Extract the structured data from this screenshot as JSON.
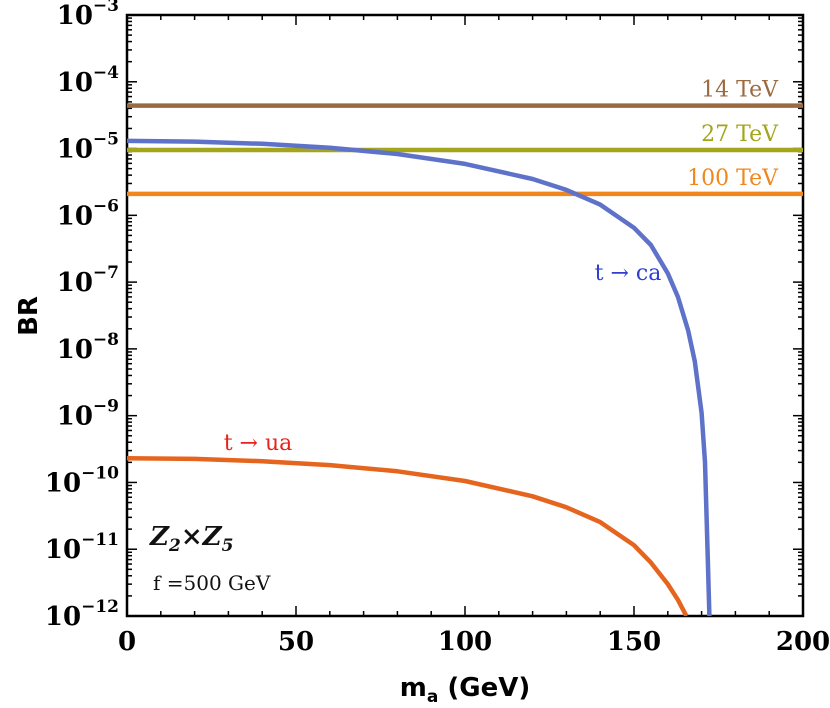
{
  "chart_data": {
    "type": "line",
    "title": "",
    "xlabel": {
      "main": "m",
      "sub": "a",
      "unit": " (GeV)"
    },
    "ylabel": "BR",
    "xlim": [
      0,
      200
    ],
    "ylim_log10": [
      -12,
      -3
    ],
    "yscale": "log",
    "grid": false,
    "x_ticks": [
      "0",
      "50",
      "100",
      "150",
      "200"
    ],
    "x_tick_values": [
      0,
      50,
      100,
      150,
      200
    ],
    "y_ticks": [
      {
        "base": "10",
        "exp": "−3",
        "value": -3
      },
      {
        "base": "10",
        "exp": "−4",
        "value": -4
      },
      {
        "base": "10",
        "exp": "−5",
        "value": -5
      },
      {
        "base": "10",
        "exp": "−6",
        "value": -6
      },
      {
        "base": "10",
        "exp": "−7",
        "value": -7
      },
      {
        "base": "10",
        "exp": "−8",
        "value": -8
      },
      {
        "base": "10",
        "exp": "−9",
        "value": -9
      },
      {
        "base": "10",
        "exp": "−10",
        "value": -10
      },
      {
        "base": "10",
        "exp": "−11",
        "value": -11
      },
      {
        "base": "10",
        "exp": "−12",
        "value": -12
      }
    ],
    "horizontal_lines": [
      {
        "name": "14 TeV",
        "label": "14 TeV",
        "y": 4.4e-05,
        "color": "#9b6a3e"
      },
      {
        "name": "27 TeV",
        "label": "27 TeV",
        "y": 9.5e-06,
        "color": "#a3a51a"
      },
      {
        "name": "100 TeV",
        "label": "100 TeV",
        "y": 2.1e-06,
        "color": "#f0861c"
      }
    ],
    "series": [
      {
        "name": "t → ca",
        "label": "t → ca",
        "color": "#5f72c9",
        "label_color": "#2e3fcf",
        "x": [
          0,
          20,
          40,
          60,
          80,
          100,
          120,
          130,
          140,
          150,
          155,
          160,
          163,
          166,
          168,
          170,
          171,
          171.8,
          172.3
        ],
        "y": [
          1.3e-05,
          1.27e-05,
          1.18e-05,
          1.03e-05,
          8.3e-06,
          5.9e-06,
          3.5e-06,
          2.4e-06,
          1.45e-06,
          6.5e-07,
          3.6e-07,
          1.35e-07,
          6e-08,
          1.9e-08,
          6.5e-09,
          1.1e-09,
          2e-10,
          8e-12,
          1e-12
        ]
      },
      {
        "name": "t → ua",
        "label": "t → ua",
        "color": "#e5651e",
        "label_color": "#e8221a",
        "x": [
          0,
          20,
          40,
          60,
          80,
          100,
          120,
          130,
          140,
          150,
          155,
          160,
          163,
          165.5
        ],
        "y": [
          2.3e-10,
          2.25e-10,
          2.08e-10,
          1.82e-10,
          1.47e-10,
          1.05e-10,
          6.2e-11,
          4.25e-11,
          2.55e-11,
          1.15e-11,
          6.3e-12,
          3e-12,
          1.75e-12,
          1e-12
        ]
      }
    ],
    "annotations": {
      "symmetry": {
        "z1": "Z",
        "z1_sub": "2",
        "times": "×",
        "z2": "Z",
        "z2_sub": "5"
      },
      "f_value": "f =500 GeV"
    }
  }
}
